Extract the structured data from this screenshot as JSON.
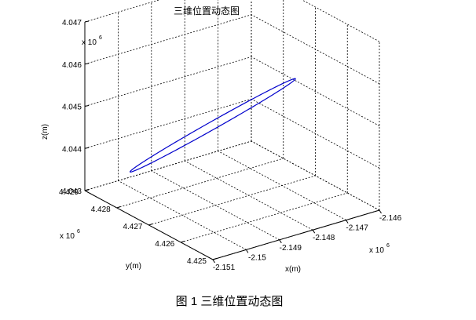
{
  "figure": {
    "caption": "图 1  三维位置动态图"
  },
  "chart_data": {
    "type": "line",
    "title": "三维位置动态图",
    "xlabel": "x(m)",
    "ylabel": "y(m)",
    "zlabel": "z(m)",
    "x_exponent_base": "x 10",
    "x_exponent": "6",
    "y_exponent_base": "x 10",
    "y_exponent": "6",
    "z_exponent_base": "x 10",
    "z_exponent": "6",
    "x_ticks": [
      -2.151,
      -2.15,
      -2.149,
      -2.148,
      -2.147,
      -2.146
    ],
    "x_tick_labels": [
      "-2.151",
      "-2.15",
      "-2.149",
      "-2.148",
      "-2.147",
      "-2.146"
    ],
    "y_ticks": [
      4.425,
      4.426,
      4.427,
      4.428,
      4.429
    ],
    "y_tick_labels": [
      "4.425",
      "4.426",
      "4.427",
      "4.428",
      "4.429"
    ],
    "z_ticks": [
      4.043,
      4.044,
      4.045,
      4.046,
      4.047
    ],
    "z_tick_labels": [
      "4.043",
      "4.044",
      "4.045",
      "4.046",
      "4.047"
    ],
    "xlim": [
      -2.151,
      -2.146
    ],
    "ylim": [
      4.425,
      4.429
    ],
    "zlim": [
      4.043,
      4.047
    ],
    "grid": true,
    "series": [
      {
        "color": "#0000cc",
        "trajectory": {
          "shape": "closed-loop",
          "center": [
            -2.1486,
            4.4275,
            4.0446
          ],
          "major_extent": [
            0.00159,
            -0.00093,
            0.00111
          ],
          "minor_extent": [
            0.00012,
            0.0001,
            5e-05
          ]
        }
      }
    ]
  }
}
